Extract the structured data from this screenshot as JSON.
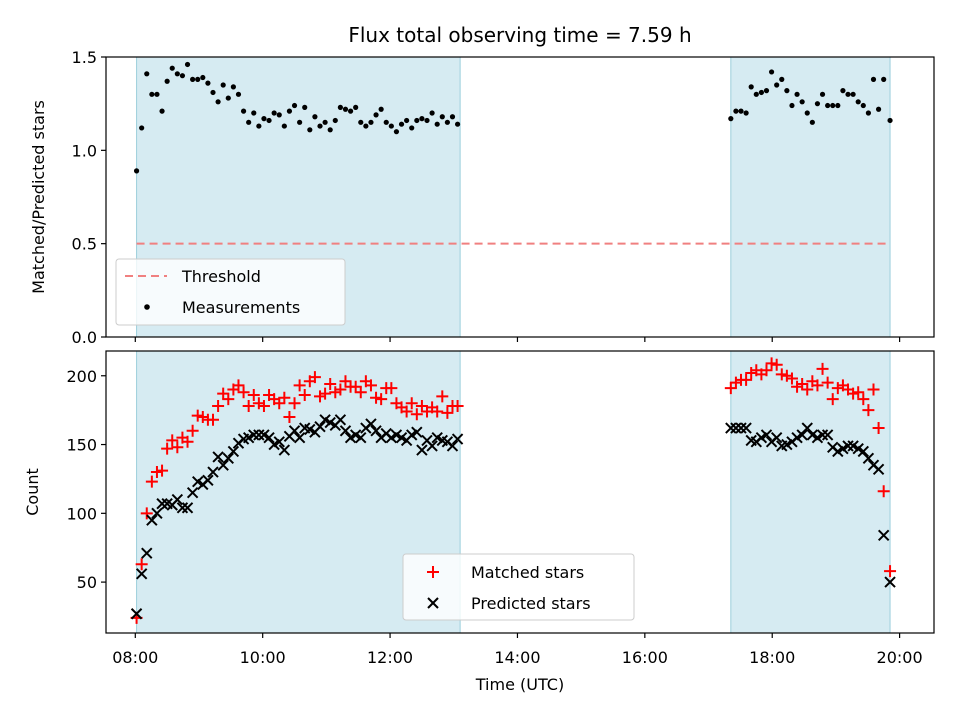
{
  "title": "Flux total observing time = 7.59 h",
  "chart_data": [
    {
      "type": "scatter",
      "ylabel": "Matched/Predicted stars",
      "xlim": [
        7.54,
        20.54
      ],
      "ylim": [
        0,
        1.5
      ],
      "yticks": [
        0,
        0.5,
        1.0,
        1.5
      ],
      "yticklabels": [
        "0.0",
        "0.5",
        "1.0",
        "1.5"
      ],
      "shaded_intervals": [
        [
          8.02,
          13.1
        ],
        [
          17.35,
          19.85
        ]
      ],
      "threshold": {
        "name": "Threshold",
        "value": 0.5,
        "x": [
          8.02,
          19.85
        ],
        "color": "#f08080",
        "style": "dashed"
      },
      "series": [
        {
          "name": "Measurements",
          "color": "#000000",
          "marker": "dot",
          "x": [
            8.02,
            8.1,
            8.18,
            8.26,
            8.34,
            8.42,
            8.5,
            8.58,
            8.66,
            8.74,
            8.82,
            8.9,
            8.98,
            9.06,
            9.14,
            9.22,
            9.3,
            9.38,
            9.46,
            9.54,
            9.62,
            9.7,
            9.78,
            9.86,
            9.94,
            10.02,
            10.1,
            10.18,
            10.26,
            10.34,
            10.42,
            10.5,
            10.58,
            10.66,
            10.74,
            10.82,
            10.9,
            10.98,
            11.06,
            11.14,
            11.22,
            11.3,
            11.38,
            11.46,
            11.54,
            11.62,
            11.7,
            11.78,
            11.86,
            11.94,
            12.02,
            12.1,
            12.18,
            12.26,
            12.34,
            12.42,
            12.5,
            12.58,
            12.66,
            12.74,
            12.82,
            12.9,
            12.98,
            13.06,
            17.35,
            17.43,
            17.51,
            17.59,
            17.67,
            17.75,
            17.83,
            17.91,
            17.99,
            18.07,
            18.15,
            18.23,
            18.31,
            18.39,
            18.47,
            18.55,
            18.63,
            18.71,
            18.79,
            18.87,
            18.95,
            19.03,
            19.11,
            19.19,
            19.27,
            19.35,
            19.43,
            19.51,
            19.59,
            19.67,
            19.75,
            19.85
          ],
          "values": [
            0.89,
            1.12,
            1.41,
            1.3,
            1.3,
            1.21,
            1.37,
            1.44,
            1.41,
            1.4,
            1.46,
            1.38,
            1.38,
            1.39,
            1.36,
            1.31,
            1.26,
            1.35,
            1.28,
            1.34,
            1.3,
            1.21,
            1.15,
            1.2,
            1.13,
            1.17,
            1.16,
            1.2,
            1.19,
            1.13,
            1.21,
            1.24,
            1.15,
            1.23,
            1.11,
            1.18,
            1.13,
            1.15,
            1.11,
            1.16,
            1.23,
            1.22,
            1.21,
            1.23,
            1.15,
            1.13,
            1.15,
            1.19,
            1.22,
            1.15,
            1.13,
            1.1,
            1.14,
            1.16,
            1.12,
            1.16,
            1.17,
            1.16,
            1.2,
            1.14,
            1.18,
            1.15,
            1.18,
            1.14,
            1.17,
            1.21,
            1.21,
            1.2,
            1.34,
            1.3,
            1.31,
            1.32,
            1.42,
            1.35,
            1.38,
            1.32,
            1.24,
            1.3,
            1.26,
            1.2,
            1.15,
            1.25,
            1.3,
            1.24,
            1.24,
            1.24,
            1.32,
            1.3,
            1.3,
            1.26,
            1.24,
            1.2,
            1.38,
            1.22,
            1.38,
            1.16
          ]
        }
      ]
    },
    {
      "type": "scatter",
      "xlabel": "Time (UTC)",
      "ylabel": "Count",
      "xlim": [
        7.54,
        20.54
      ],
      "ylim": [
        13,
        218
      ],
      "yticks": [
        50,
        100,
        150,
        200
      ],
      "yticklabels": [
        "50",
        "100",
        "150",
        "200"
      ],
      "xticks": [
        8,
        10,
        12,
        14,
        16,
        18,
        20
      ],
      "xticklabels": [
        "08:00",
        "10:00",
        "12:00",
        "14:00",
        "16:00",
        "18:00",
        "20:00"
      ],
      "shaded_intervals": [
        [
          8.02,
          13.1
        ],
        [
          17.35,
          19.85
        ]
      ],
      "legend_position": "bottom-center",
      "series": [
        {
          "name": "Matched stars",
          "color": "#ff0000",
          "marker": "plus",
          "x": [
            8.02,
            8.1,
            8.18,
            8.26,
            8.34,
            8.42,
            8.5,
            8.58,
            8.66,
            8.74,
            8.82,
            8.9,
            8.98,
            9.06,
            9.14,
            9.22,
            9.3,
            9.38,
            9.46,
            9.54,
            9.62,
            9.7,
            9.78,
            9.86,
            9.94,
            10.02,
            10.1,
            10.18,
            10.26,
            10.34,
            10.42,
            10.5,
            10.58,
            10.66,
            10.74,
            10.82,
            10.9,
            10.98,
            11.06,
            11.14,
            11.22,
            11.3,
            11.38,
            11.46,
            11.54,
            11.62,
            11.7,
            11.78,
            11.86,
            11.94,
            12.02,
            12.1,
            12.18,
            12.26,
            12.34,
            12.42,
            12.5,
            12.58,
            12.66,
            12.74,
            12.82,
            12.9,
            12.98,
            13.06,
            17.35,
            17.43,
            17.51,
            17.59,
            17.67,
            17.75,
            17.83,
            17.91,
            17.99,
            18.07,
            18.15,
            18.23,
            18.31,
            18.39,
            18.47,
            18.55,
            18.63,
            18.71,
            18.79,
            18.87,
            18.95,
            19.03,
            19.11,
            19.19,
            19.27,
            19.35,
            19.43,
            19.51,
            19.59,
            19.67,
            19.75,
            19.85
          ],
          "values": [
            24,
            63,
            100,
            123,
            130,
            131,
            147,
            153,
            148,
            155,
            152,
            160,
            171,
            170,
            168,
            168,
            178,
            187,
            183,
            190,
            193,
            188,
            178,
            186,
            180,
            178,
            186,
            183,
            180,
            184,
            170,
            180,
            193,
            186,
            196,
            199,
            185,
            187,
            194,
            188,
            190,
            196,
            192,
            192,
            188,
            196,
            193,
            184,
            183,
            191,
            191,
            180,
            177,
            174,
            180,
            172,
            178,
            174,
            177,
            174,
            185,
            173,
            178,
            178,
            191,
            195,
            197,
            197,
            202,
            204,
            201,
            204,
            209,
            208,
            201,
            200,
            198,
            192,
            194,
            190,
            196,
            193,
            205,
            195,
            183,
            191,
            193,
            190,
            187,
            188,
            183,
            175,
            190,
            162,
            116,
            58
          ]
        },
        {
          "name": "Predicted stars",
          "color": "#000000",
          "marker": "x",
          "x": [
            8.02,
            8.1,
            8.18,
            8.26,
            8.34,
            8.42,
            8.5,
            8.58,
            8.66,
            8.74,
            8.82,
            8.9,
            8.98,
            9.06,
            9.14,
            9.22,
            9.3,
            9.38,
            9.46,
            9.54,
            9.62,
            9.7,
            9.78,
            9.86,
            9.94,
            10.02,
            10.1,
            10.18,
            10.26,
            10.34,
            10.42,
            10.5,
            10.58,
            10.66,
            10.74,
            10.82,
            10.9,
            10.98,
            11.06,
            11.14,
            11.22,
            11.3,
            11.38,
            11.46,
            11.54,
            11.62,
            11.7,
            11.78,
            11.86,
            11.94,
            12.02,
            12.1,
            12.18,
            12.26,
            12.34,
            12.42,
            12.5,
            12.58,
            12.66,
            12.74,
            12.82,
            12.9,
            12.98,
            13.06,
            17.35,
            17.43,
            17.51,
            17.59,
            17.67,
            17.75,
            17.83,
            17.91,
            17.99,
            18.07,
            18.15,
            18.23,
            18.31,
            18.39,
            18.47,
            18.55,
            18.63,
            18.71,
            18.79,
            18.87,
            18.95,
            19.03,
            19.11,
            19.19,
            19.27,
            19.35,
            19.43,
            19.51,
            19.59,
            19.67,
            19.75,
            19.85
          ],
          "values": [
            27,
            56,
            71,
            95,
            100,
            107,
            107,
            106,
            110,
            104,
            104,
            115,
            123,
            121,
            124,
            130,
            141,
            135,
            140,
            145,
            151,
            154,
            155,
            157,
            157,
            157,
            155,
            150,
            152,
            146,
            156,
            160,
            155,
            162,
            161,
            159,
            163,
            168,
            166,
            164,
            168,
            160,
            155,
            157,
            155,
            162,
            165,
            160,
            155,
            158,
            155,
            157,
            155,
            153,
            157,
            159,
            146,
            153,
            149,
            155,
            153,
            152,
            149,
            154,
            162,
            162,
            162,
            162,
            153,
            152,
            155,
            157,
            152,
            155,
            149,
            150,
            152,
            155,
            157,
            162,
            157,
            155,
            157,
            157,
            148,
            145,
            147,
            149,
            149,
            147,
            145,
            140,
            135,
            132,
            84,
            50
          ]
        }
      ]
    }
  ]
}
